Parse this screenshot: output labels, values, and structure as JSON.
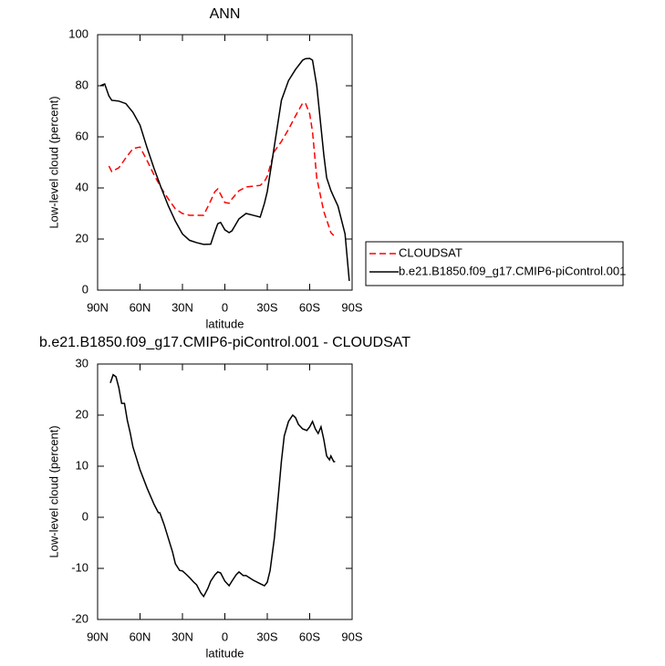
{
  "chart_data": [
    {
      "type": "line",
      "title": "ANN",
      "xlabel": "latitude",
      "ylabel": "Low-level cloud (percent)",
      "x": [
        88,
        85,
        82,
        80,
        75,
        70,
        65,
        60,
        55,
        50,
        45,
        40,
        35,
        30,
        25,
        20,
        15,
        10,
        7,
        5,
        3,
        0,
        -3,
        -5,
        -10,
        -15,
        -20,
        -25,
        -28,
        -30,
        -35,
        -40,
        -45,
        -50,
        -55,
        -57,
        -60,
        -62,
        -65,
        -70,
        -72,
        -75,
        -77,
        -80,
        -85,
        -88
      ],
      "series": [
        {
          "name": "CLOUDSAT",
          "color": "#ff0000",
          "dashed": true,
          "values": [
            null,
            null,
            48.6,
            46.4,
            47.9,
            51.8,
            55.4,
            56,
            50.7,
            45,
            40,
            35.7,
            31.8,
            30,
            29.3,
            29.3,
            29.3,
            35,
            38.6,
            39.6,
            37.5,
            34.3,
            34,
            35.7,
            38.9,
            40.4,
            40.7,
            41,
            42.5,
            44.6,
            54.3,
            58.2,
            62.9,
            68.2,
            73.2,
            73.2,
            69,
            62,
            43.9,
            30.7,
            27.5,
            22.5,
            21.4,
            null,
            null,
            null
          ]
        },
        {
          "name": "b.e21.B1850.f09_g17.CMIP6-piControl.001",
          "color": "#000000",
          "dashed": false,
          "values": [
            80,
            80.7,
            76,
            74.3,
            74,
            73,
            69.6,
            64.6,
            55.7,
            47.5,
            40,
            33,
            27,
            22,
            19.5,
            18.6,
            17.9,
            18,
            23,
            26,
            26.5,
            23.6,
            22.5,
            23.2,
            27.9,
            30,
            29.3,
            28.6,
            34,
            38.6,
            56.4,
            74.3,
            82,
            86.4,
            90,
            90.6,
            90.7,
            90,
            80,
            52.9,
            44,
            39,
            36.5,
            32.9,
            22,
            3.6
          ]
        }
      ],
      "xlim": [
        90,
        -90
      ],
      "xticks": [
        {
          "value": 90,
          "label": "90N"
        },
        {
          "value": 60,
          "label": "60N"
        },
        {
          "value": 30,
          "label": "30N"
        },
        0,
        {
          "value": -30,
          "label": "30S"
        },
        {
          "value": -60,
          "label": "60S"
        },
        {
          "value": -90,
          "label": "90S"
        }
      ],
      "ylim": [
        0,
        100
      ],
      "yticks": [
        0,
        20,
        40,
        60,
        80,
        100
      ],
      "legend": "outside-right-bottom"
    },
    {
      "type": "line",
      "title": "b.e21.B1850.f09_g17.CMIP6-piControl.001 - CLOUDSAT",
      "xlabel": "latitude",
      "ylabel": "Low-level cloud (percent)",
      "x": [
        81,
        79,
        77,
        75,
        73,
        71,
        69,
        67,
        65,
        63,
        60,
        55,
        50,
        47,
        46,
        43,
        40,
        37,
        35,
        32,
        30,
        27,
        25,
        22,
        20,
        17,
        15,
        12,
        10,
        7,
        5,
        3,
        0,
        -3,
        -5,
        -8,
        -10,
        -13,
        -15,
        -20,
        -25,
        -28,
        -30,
        -32,
        -35,
        -38,
        -40,
        -42,
        -45,
        -48,
        -50,
        -52,
        -55,
        -58,
        -60,
        -62,
        -64,
        -66,
        -68,
        -70,
        -72,
        -74,
        -75,
        -77,
        -78
      ],
      "series": [
        {
          "color": "#000000",
          "dashed": false,
          "values": [
            26.3,
            27.9,
            27.5,
            25.4,
            22.3,
            22.3,
            19,
            16.6,
            13.75,
            12,
            9.3,
            5.7,
            2.5,
            0.9,
            0.9,
            -1.4,
            -4.1,
            -6.8,
            -9.1,
            -10.4,
            -10.5,
            -11.25,
            -11.8,
            -12.7,
            -13.2,
            -14.8,
            -15.5,
            -13.9,
            -12.5,
            -11.25,
            -10.7,
            -10.9,
            -12.5,
            -13.4,
            -12.5,
            -11.25,
            -10.7,
            -11.4,
            -11.4,
            -12.3,
            -13,
            -13.4,
            -12.7,
            -10.4,
            -4.1,
            4.8,
            11,
            15.9,
            18.75,
            20,
            19.5,
            18.2,
            17.3,
            17,
            17.7,
            18.75,
            17.3,
            16.4,
            17.7,
            15.2,
            12,
            11.25,
            12,
            10.9,
            10.9
          ]
        }
      ],
      "xlim": [
        90,
        -90
      ],
      "xticks": [
        {
          "value": 90,
          "label": "90N"
        },
        {
          "value": 60,
          "label": "60N"
        },
        {
          "value": 30,
          "label": "30N"
        },
        0,
        {
          "value": -30,
          "label": "30S"
        },
        {
          "value": -60,
          "label": "60S"
        },
        {
          "value": -90,
          "label": "90S"
        }
      ],
      "ylim": [
        -20,
        30
      ],
      "yticks": [
        -20,
        -10,
        0,
        10,
        20,
        30
      ]
    }
  ]
}
